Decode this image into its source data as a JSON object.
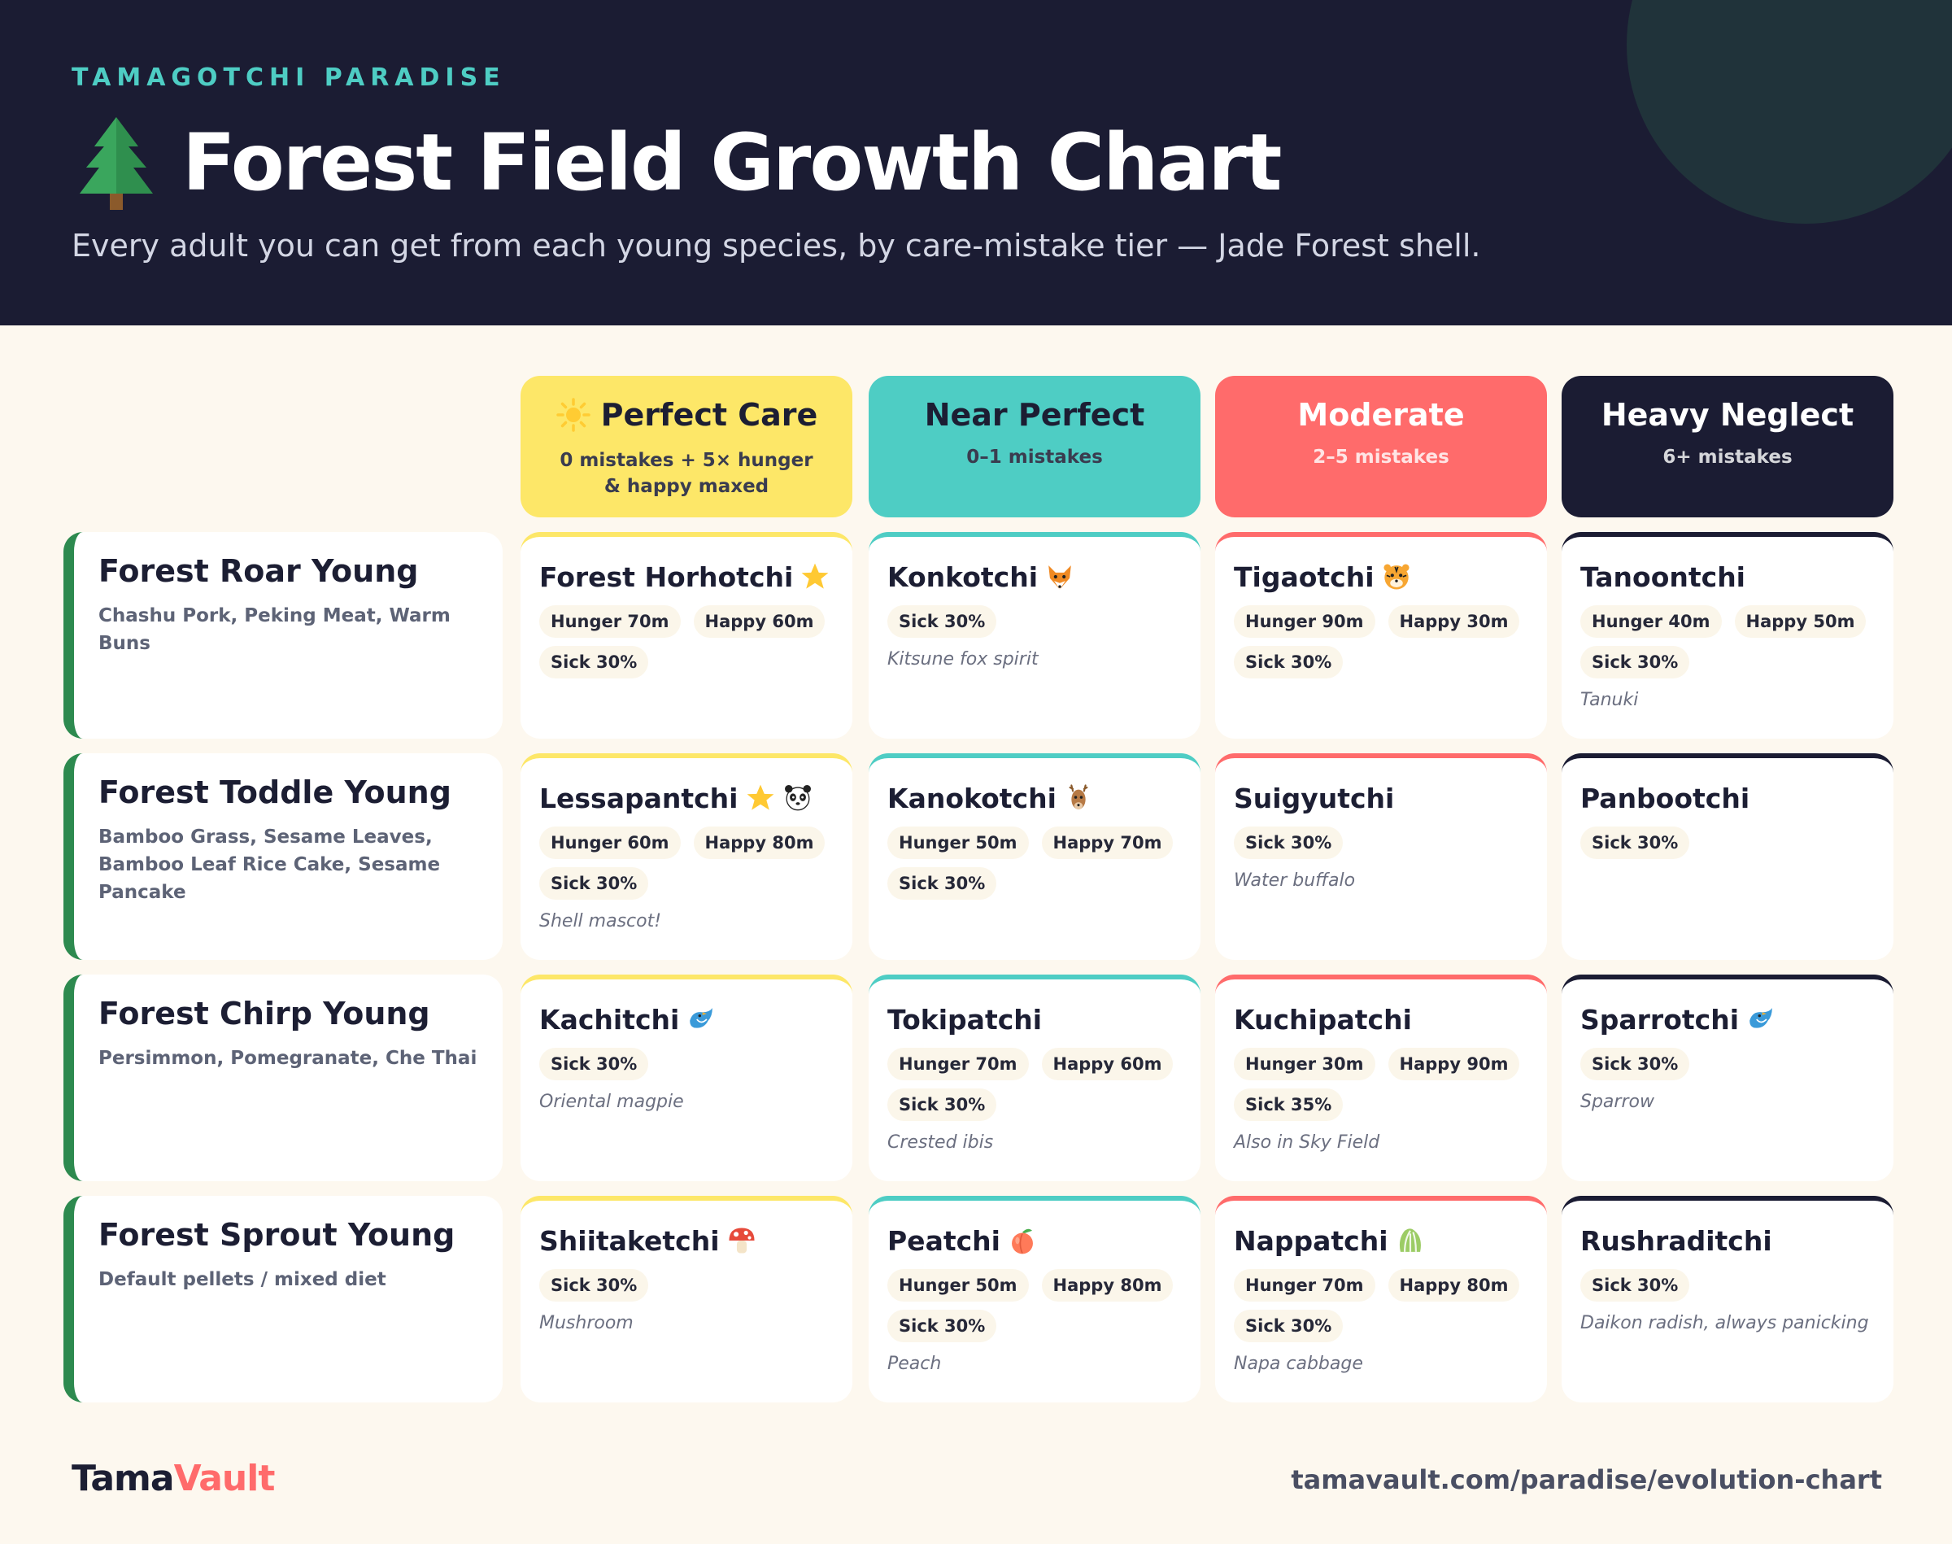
{
  "header": {
    "eyebrow": "TAMAGOTCHI PARADISE",
    "title": "Forest Field Growth Chart",
    "title_icon": "evergreen-tree-icon",
    "subtitle": "Every adult you can get from each young species, by care-mistake tier — Jade Forest shell."
  },
  "tiers": [
    {
      "name": "Perfect Care",
      "icon": "sun-icon",
      "sub": "0 mistakes + 5× hunger & happy maxed",
      "color": "#fde768",
      "text_color": "#1c1e33"
    },
    {
      "name": "Near Perfect",
      "sub": "0–1 mistakes",
      "color": "#4ecdc4",
      "text_color": "#1c1e33"
    },
    {
      "name": "Moderate",
      "sub": "2–5 mistakes",
      "color": "#ff6b6b",
      "text_color": "#ffffff"
    },
    {
      "name": "Heavy Neglect",
      "sub": "6+ mistakes",
      "color": "#1b1c33",
      "text_color": "#ffffff"
    }
  ],
  "rows": [
    {
      "name": "Forest Roar Young",
      "foods": "Chashu Pork, Peking Meat, Warm Buns",
      "cells": [
        {
          "name": "Forest Horhotchi",
          "icons": [
            "star-icon"
          ],
          "tags": [
            "Hunger 70m",
            "Happy 60m",
            "Sick 30%"
          ],
          "note": ""
        },
        {
          "name": "Konkotchi",
          "icons": [
            "fox-icon"
          ],
          "tags": [
            "Sick 30%"
          ],
          "note": "Kitsune fox spirit"
        },
        {
          "name": "Tigaotchi",
          "icons": [
            "tiger-icon"
          ],
          "tags": [
            "Hunger 90m",
            "Happy 30m",
            "Sick 30%"
          ],
          "note": ""
        },
        {
          "name": "Tanoontchi",
          "icons": [],
          "tags": [
            "Hunger 40m",
            "Happy 50m",
            "Sick 30%"
          ],
          "note": "Tanuki"
        }
      ]
    },
    {
      "name": "Forest Toddle Young",
      "foods": "Bamboo Grass, Sesame Leaves, Bamboo Leaf Rice Cake, Sesame Pancake",
      "cells": [
        {
          "name": "Lessapantchi",
          "icons": [
            "star-icon",
            "panda-icon"
          ],
          "tags": [
            "Hunger 60m",
            "Happy 80m",
            "Sick 30%"
          ],
          "note": "Shell mascot!"
        },
        {
          "name": "Kanokotchi",
          "icons": [
            "deer-icon"
          ],
          "tags": [
            "Hunger 50m",
            "Happy 70m",
            "Sick 30%"
          ],
          "note": ""
        },
        {
          "name": "Suigyutchi",
          "icons": [],
          "tags": [
            "Sick 30%"
          ],
          "note": "Water buffalo"
        },
        {
          "name": "Panbootchi",
          "icons": [],
          "tags": [
            "Sick 30%"
          ],
          "note": ""
        }
      ]
    },
    {
      "name": "Forest Chirp Young",
      "foods": "Persimmon, Pomegranate, Che Thai",
      "cells": [
        {
          "name": "Kachitchi",
          "icons": [
            "bird-icon"
          ],
          "tags": [
            "Sick 30%"
          ],
          "note": "Oriental magpie"
        },
        {
          "name": "Tokipatchi",
          "icons": [],
          "tags": [
            "Hunger 70m",
            "Happy 60m",
            "Sick 30%"
          ],
          "note": "Crested ibis"
        },
        {
          "name": "Kuchipatchi",
          "icons": [],
          "tags": [
            "Hunger 30m",
            "Happy 90m",
            "Sick 35%"
          ],
          "note": "Also in Sky Field"
        },
        {
          "name": "Sparrotchi",
          "icons": [
            "bird-icon"
          ],
          "tags": [
            "Sick 30%"
          ],
          "note": "Sparrow"
        }
      ]
    },
    {
      "name": "Forest Sprout Young",
      "foods": "Default pellets / mixed diet",
      "cells": [
        {
          "name": "Shiitaketchi",
          "icons": [
            "mushroom-icon"
          ],
          "tags": [
            "Sick 30%"
          ],
          "note": "Mushroom"
        },
        {
          "name": "Peatchi",
          "icons": [
            "peach-icon"
          ],
          "tags": [
            "Hunger 50m",
            "Happy 80m",
            "Sick 30%"
          ],
          "note": "Peach"
        },
        {
          "name": "Nappatchi",
          "icons": [
            "cabbage-icon"
          ],
          "tags": [
            "Hunger 70m",
            "Happy 80m",
            "Sick 30%"
          ],
          "note": "Napa cabbage"
        },
        {
          "name": "Rushraditchi",
          "icons": [],
          "tags": [
            "Sick 30%"
          ],
          "note": "Daikon radish, always panicking"
        }
      ]
    }
  ],
  "footer": {
    "logo_a": "Tama",
    "logo_b": "Vault",
    "url": "tamavault.com/paradise/evolution-chart"
  },
  "colors": {
    "background": "#fdf8ef",
    "header_bg": "#1b1c33",
    "accent_teal": "#4ecdc4",
    "accent_red": "#ff6b6b",
    "accent_yellow": "#fde768",
    "forest_green": "#2d8a4f"
  }
}
